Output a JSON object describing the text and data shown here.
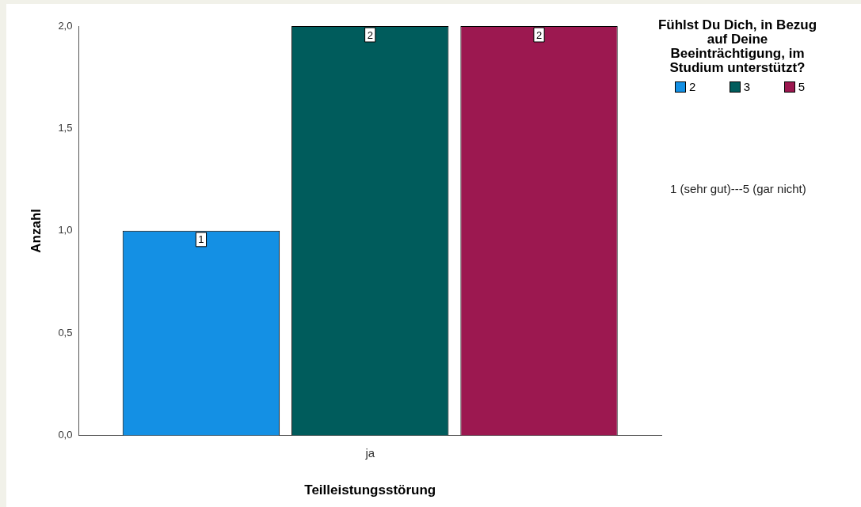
{
  "chart_data": {
    "type": "bar",
    "xlabel": "Teilleistungsstörung",
    "ylabel": "Anzahl",
    "legend_title": "Fühlst Du Dich, in Bezug auf Deine Beeinträchtigung, im Studium unterstützt?",
    "annotations": [
      "1 (sehr gut)---5 (gar nicht)"
    ],
    "categories": [
      "ja"
    ],
    "series": [
      {
        "name": "2",
        "color": "#1490e4",
        "values": [
          1
        ]
      },
      {
        "name": "3",
        "color": "#005c5c",
        "values": [
          2
        ]
      },
      {
        "name": "5",
        "color": "#9c1850",
        "values": [
          2
        ]
      }
    ],
    "ylim": [
      0,
      2
    ],
    "yticks": [
      {
        "value": 0,
        "label": "0,0"
      },
      {
        "value": 0.5,
        "label": "0,5"
      },
      {
        "value": 1,
        "label": "1,0"
      },
      {
        "value": 1.5,
        "label": "1,5"
      },
      {
        "value": 2,
        "label": "2,0"
      }
    ],
    "grid": false,
    "legend": "top right",
    "data_labels": true
  }
}
